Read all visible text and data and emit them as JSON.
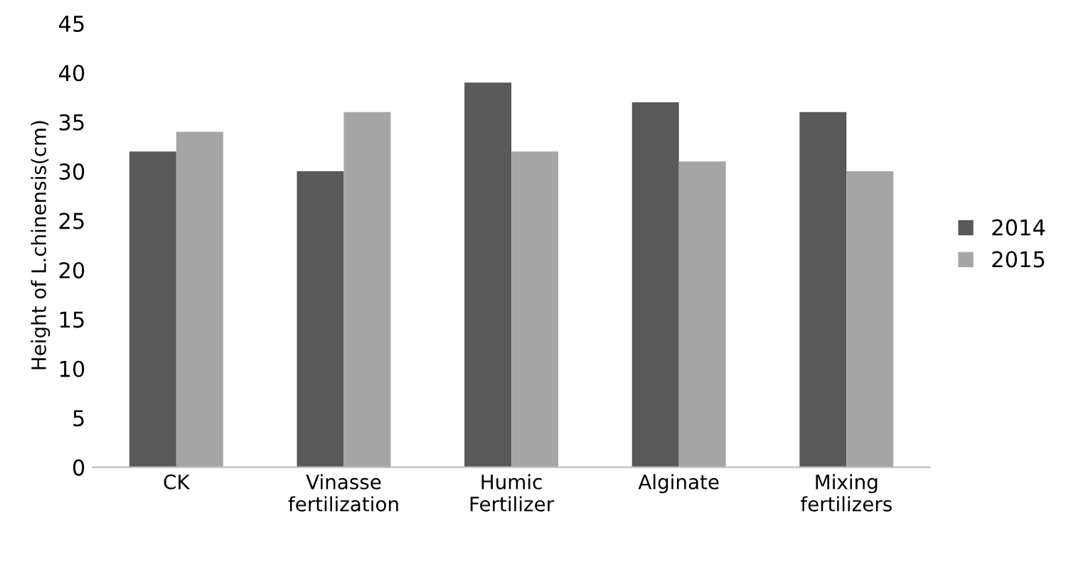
{
  "chart_data": {
    "type": "bar",
    "ylabel": "Height of L.chinensis(cm)",
    "categories": [
      "CK",
      "Vinasse\nfertilization",
      "Humic\nFertilizer",
      "Alginate",
      "Mixing\nfertilizers"
    ],
    "series": [
      {
        "name": "2014",
        "color": "#595959",
        "values": [
          32,
          30,
          39,
          37,
          36
        ]
      },
      {
        "name": "2015",
        "color": "#a6a6a6",
        "values": [
          34,
          36,
          32,
          31,
          30
        ]
      }
    ],
    "ylim": [
      0,
      45
    ],
    "yticks": [
      0,
      5,
      10,
      15,
      20,
      25,
      30,
      35,
      40,
      45
    ],
    "grid": false,
    "legend": "right"
  }
}
